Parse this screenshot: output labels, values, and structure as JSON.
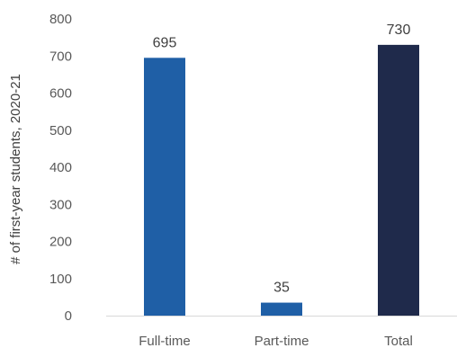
{
  "chart_data": {
    "type": "bar",
    "title": "",
    "xlabel": "",
    "ylabel": "# of first-year students, 2020-21",
    "categories": [
      "Full-time",
      "Part-time",
      "Total"
    ],
    "values": [
      695,
      35,
      730
    ],
    "data_labels": [
      "695",
      "35",
      "730"
    ],
    "bar_colors": [
      "#1f5fa6",
      "#1f5fa6",
      "#1f2a4b"
    ],
    "ylim": [
      0,
      800
    ],
    "yticks": [
      0,
      100,
      200,
      300,
      400,
      500,
      600,
      700,
      800
    ],
    "grid": false,
    "legend": "none"
  }
}
